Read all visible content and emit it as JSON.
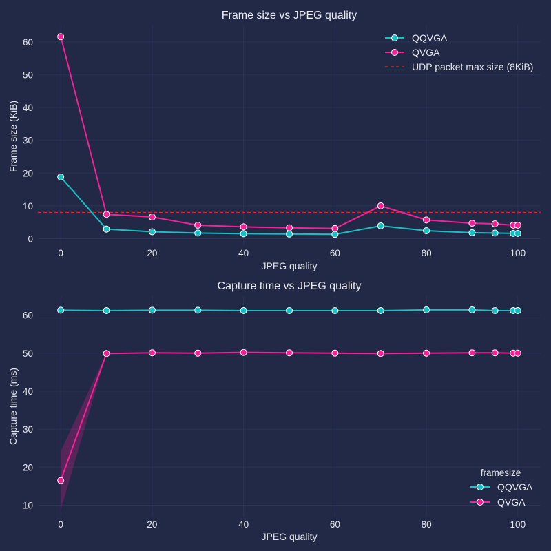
{
  "chart_data": [
    {
      "type": "line",
      "title": "Frame size vs JPEG quality",
      "xlabel": "JPEG quality",
      "ylabel": "Frame size (KiB)",
      "xlim": [
        -5,
        105
      ],
      "ylim": [
        -2,
        65
      ],
      "xticks": [
        0,
        20,
        40,
        60,
        80,
        100
      ],
      "yticks": [
        0,
        10,
        20,
        30,
        40,
        50,
        60
      ],
      "grid": true,
      "legend": {
        "placement": "top-right",
        "title": "",
        "entries": [
          "QQVGA",
          "QVGA",
          "UDP packet max size (8KiB)"
        ]
      },
      "x": [
        0,
        10,
        20,
        30,
        40,
        50,
        60,
        70,
        80,
        90,
        95,
        99,
        100
      ],
      "series": [
        {
          "name": "QQVGA",
          "color": "#18c0c4",
          "values": [
            18.8,
            2.9,
            2.1,
            1.7,
            1.5,
            1.4,
            1.3,
            3.9,
            2.4,
            1.8,
            1.7,
            1.6,
            1.6
          ]
        },
        {
          "name": "QVGA",
          "color": "#f62196",
          "values": [
            61.6,
            7.4,
            6.6,
            4.1,
            3.6,
            3.3,
            3.1,
            10.0,
            5.7,
            4.7,
            4.5,
            4.1,
            4.1
          ]
        }
      ],
      "reference_line": {
        "name": "UDP packet max size (8KiB)",
        "y": 8,
        "color": "#e8202e",
        "style": "dashed"
      }
    },
    {
      "type": "line",
      "title": "Capture time vs JPEG quality",
      "xlabel": "JPEG quality",
      "ylabel": "Capture time (ms)",
      "xlim": [
        -5,
        105
      ],
      "ylim": [
        7,
        65
      ],
      "xticks": [
        0,
        20,
        40,
        60,
        80,
        100
      ],
      "yticks": [
        10,
        20,
        30,
        40,
        50,
        60
      ],
      "grid": true,
      "legend": {
        "placement": "bottom-right",
        "title": "framesize",
        "entries": [
          "QQVGA",
          "QVGA"
        ]
      },
      "x": [
        0,
        10,
        20,
        30,
        40,
        50,
        60,
        70,
        80,
        90,
        95,
        99,
        100
      ],
      "series": [
        {
          "name": "QQVGA",
          "color": "#18c0c4",
          "values": [
            61.3,
            61.2,
            61.3,
            61.3,
            61.2,
            61.2,
            61.2,
            61.2,
            61.4,
            61.4,
            61.2,
            61.2,
            61.2
          ]
        },
        {
          "name": "QVGA",
          "color": "#f62196",
          "values": [
            16.5,
            49.9,
            50.1,
            50.0,
            50.2,
            50.1,
            50.0,
            49.9,
            50.0,
            50.1,
            50.1,
            50.0,
            50.0
          ],
          "ci_low": [
            8.8,
            49.8,
            50.0,
            49.9,
            50.1,
            50.0,
            49.9,
            49.8,
            49.9,
            50.0,
            50.0,
            49.9,
            49.9
          ],
          "ci_high": [
            24.2,
            50.0,
            50.2,
            50.1,
            50.3,
            50.2,
            50.1,
            50.0,
            50.1,
            50.2,
            50.2,
            50.1,
            50.1
          ]
        }
      ]
    }
  ]
}
